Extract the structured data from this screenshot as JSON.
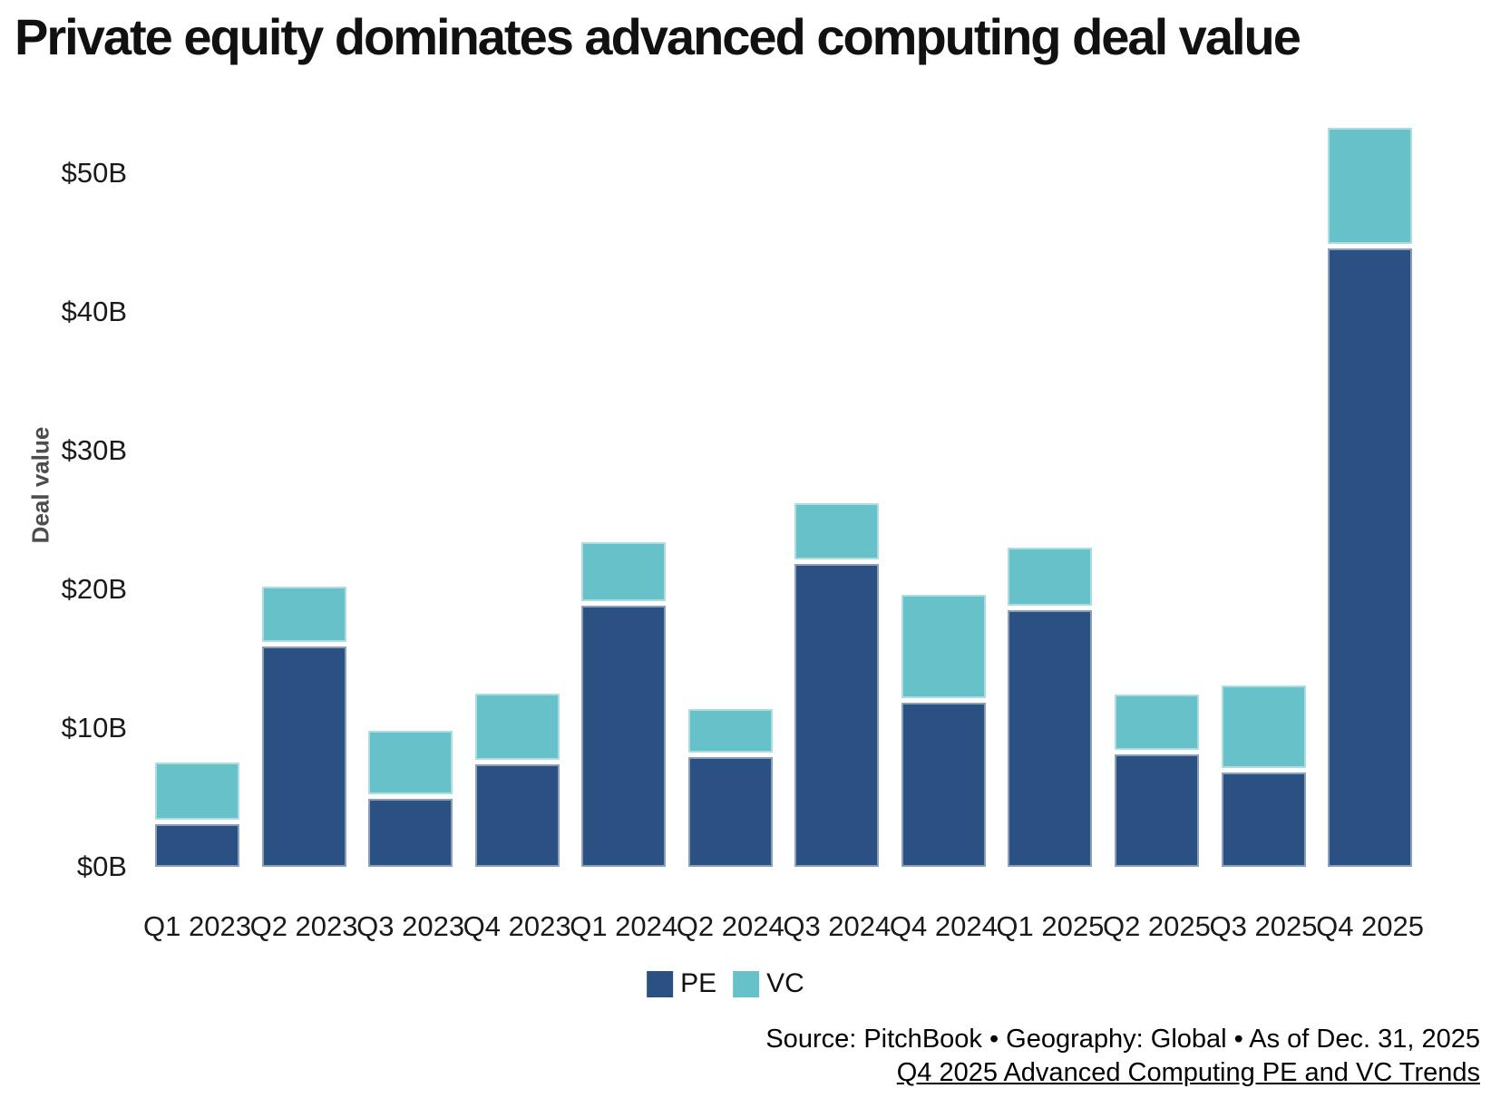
{
  "title": "Private equity dominates advanced computing deal value",
  "y_axis": {
    "label": "Deal value",
    "ticks": [
      "$0B",
      "$10B",
      "$20B",
      "$30B",
      "$40B",
      "$50B"
    ],
    "tick_values": [
      0,
      10,
      20,
      30,
      40,
      50
    ]
  },
  "legend": {
    "items": [
      {
        "label": "PE",
        "color": "#2A5181"
      },
      {
        "label": "VC",
        "color": "#66C1C9"
      }
    ]
  },
  "source": {
    "line1": "Source: PitchBook • Geography: Global • As of Dec. 31, 2025",
    "line2": "Q4 2025 Advanced Computing PE and VC Trends"
  },
  "chart_data": {
    "type": "bar",
    "stacked": true,
    "title": "Private equity dominates advanced computing deal value",
    "xlabel": "",
    "ylabel": "Deal value",
    "value_unit": "USD billions",
    "ylim": [
      0,
      55
    ],
    "grid": false,
    "legend_position": "bottom",
    "categories": [
      "Q1 2023",
      "Q2 2023",
      "Q3 2023",
      "Q4 2023",
      "Q1 2024",
      "Q2 2024",
      "Q3 2024",
      "Q4 2024",
      "Q1 2025",
      "Q2 2025",
      "Q3 2025",
      "Q4 2025"
    ],
    "series": [
      {
        "name": "PE",
        "color": "#2A5181",
        "values": [
          3.1,
          15.9,
          4.9,
          7.4,
          18.8,
          7.9,
          21.8,
          11.8,
          18.5,
          8.1,
          6.8,
          44.6
        ]
      },
      {
        "name": "VC",
        "color": "#66C1C9",
        "values": [
          4.4,
          4.3,
          4.9,
          5.1,
          4.6,
          3.5,
          4.4,
          7.8,
          4.5,
          4.3,
          6.3,
          8.7
        ]
      }
    ],
    "totals": [
      7.5,
      20.2,
      9.8,
      12.5,
      23.4,
      11.4,
      26.2,
      19.6,
      23.0,
      12.4,
      13.1,
      53.3
    ]
  }
}
